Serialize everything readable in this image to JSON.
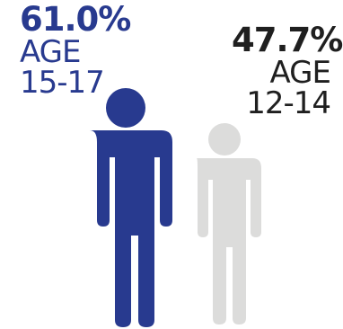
{
  "colors": {
    "older": "#283a8f",
    "younger": "#dcdcdb",
    "younger_text": "#1f1f1f"
  },
  "chart_data": {
    "type": "pictogram",
    "series": [
      {
        "percent": 61.0,
        "value_label": "61.0%",
        "label": "AGE",
        "range": "15-17",
        "color": "#283a8f"
      },
      {
        "percent": 47.7,
        "value_label": "47.7%",
        "label": "AGE",
        "range": "12-14",
        "color": "#dcdcdb"
      }
    ]
  }
}
